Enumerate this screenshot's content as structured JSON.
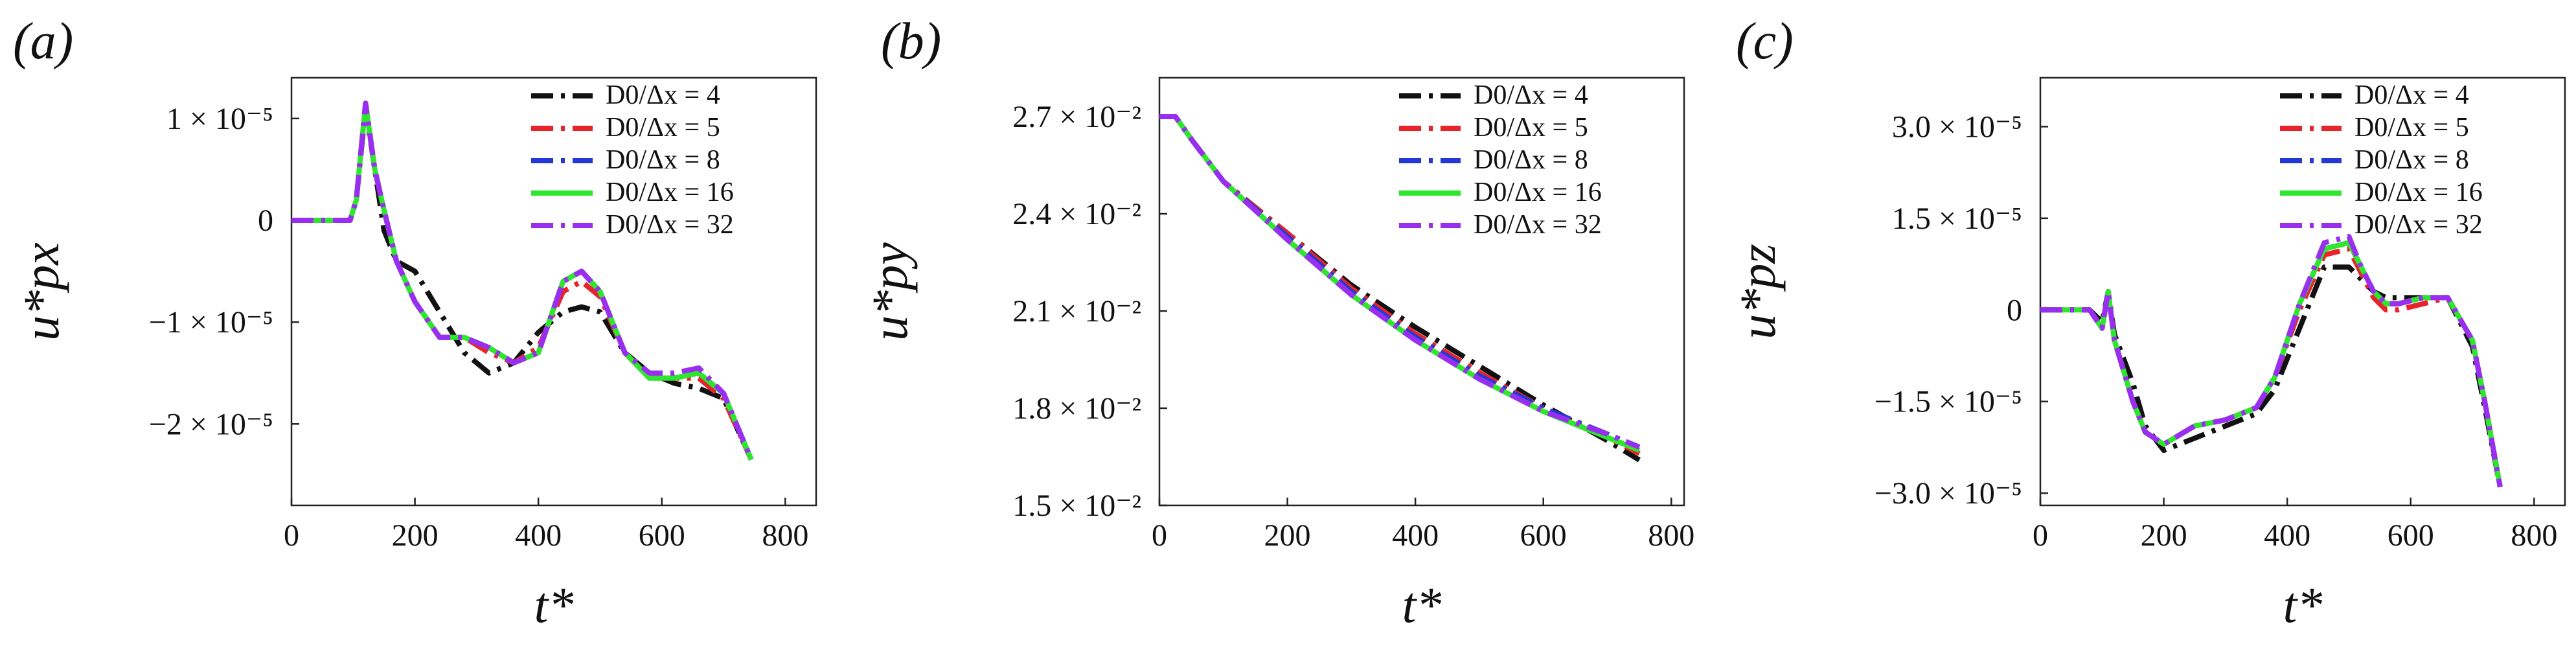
{
  "figure": {
    "legend_entries": [
      "D0/Δx = 4",
      "D0/Δx = 5",
      "D0/Δx = 8",
      "D0/Δx = 16",
      "D0/Δx = 32"
    ]
  },
  "series_styles": [
    {
      "name": "D0/Δx = 4",
      "color": "#111111",
      "dash": "dashdot"
    },
    {
      "name": "D0/Δx = 5",
      "color": "#e8232a",
      "dash": "dashdot"
    },
    {
      "name": "D0/Δx = 8",
      "color": "#2438d6",
      "dash": "dashdot"
    },
    {
      "name": "D0/Δx = 16",
      "color": "#2ee62e",
      "dash": "solid"
    },
    {
      "name": "D0/Δx = 32",
      "color": "#9a2ef0",
      "dash": "dashdot"
    }
  ],
  "chart_data": [
    {
      "type": "line",
      "panel_label": "(a)",
      "xlabel": "t*",
      "ylabel": "u*px",
      "xlim": [
        0,
        850
      ],
      "ylim": [
        -2.8e-05,
        1.4e-05
      ],
      "x_ticks": [
        0,
        200,
        400,
        600,
        800
      ],
      "y_ticks": [
        1e-05,
        0,
        -1e-05,
        -2e-05
      ],
      "y_tick_labels": [
        "1 × 10⁻⁵",
        "0",
        "−1 × 10⁻⁵",
        "−2 × 10⁻⁵"
      ],
      "legend": "top-right",
      "series": [
        {
          "name": "D0/Δx = 4",
          "x": [
            0,
            95,
            105,
            120,
            135,
            150,
            170,
            200,
            240,
            280,
            320,
            360,
            400,
            440,
            470,
            500,
            540,
            580,
            620,
            660,
            700,
            745
          ],
          "y": [
            0,
            0,
            2e-06,
            1.1e-05,
            5e-06,
            -1e-06,
            -4e-06,
            -5e-06,
            -9e-06,
            -1.3e-05,
            -1.5e-05,
            -1.4e-05,
            -1.1e-05,
            -9e-06,
            -8.5e-06,
            -9e-06,
            -1.3e-05,
            -1.5e-05,
            -1.6e-05,
            -1.65e-05,
            -1.75e-05,
            -2.35e-05
          ]
        },
        {
          "name": "D0/Δx = 5",
          "x": [
            0,
            95,
            105,
            120,
            135,
            150,
            170,
            200,
            240,
            280,
            320,
            360,
            400,
            440,
            470,
            500,
            540,
            580,
            620,
            660,
            700,
            745
          ],
          "y": [
            0,
            0,
            2e-06,
            1.15e-05,
            5e-06,
            1e-06,
            -4e-06,
            -8e-06,
            -1.15e-05,
            -1.15e-05,
            -1.3e-05,
            -1.4e-05,
            -1.25e-05,
            -7e-06,
            -6e-06,
            -7.5e-06,
            -1.3e-05,
            -1.55e-05,
            -1.55e-05,
            -1.55e-05,
            -1.75e-05,
            -2.35e-05
          ]
        },
        {
          "name": "D0/Δx = 8",
          "x": [
            0,
            95,
            105,
            120,
            135,
            150,
            170,
            200,
            240,
            280,
            320,
            360,
            400,
            440,
            470,
            500,
            540,
            580,
            620,
            660,
            700,
            745
          ],
          "y": [
            0,
            0,
            2e-06,
            1.15e-05,
            5e-06,
            1e-06,
            -4e-06,
            -8e-06,
            -1.15e-05,
            -1.15e-05,
            -1.25e-05,
            -1.4e-05,
            -1.3e-05,
            -6e-06,
            -5e-06,
            -7e-06,
            -1.3e-05,
            -1.55e-05,
            -1.55e-05,
            -1.5e-05,
            -1.7e-05,
            -2.35e-05
          ]
        },
        {
          "name": "D0/Δx = 16",
          "x": [
            0,
            95,
            105,
            120,
            135,
            150,
            170,
            200,
            240,
            280,
            320,
            360,
            400,
            440,
            470,
            500,
            540,
            580,
            620,
            660,
            700,
            745
          ],
          "y": [
            0,
            0,
            2e-06,
            1.15e-05,
            5e-06,
            1e-06,
            -4e-06,
            -8e-06,
            -1.15e-05,
            -1.15e-05,
            -1.25e-05,
            -1.4e-05,
            -1.3e-05,
            -6e-06,
            -5e-06,
            -7e-06,
            -1.3e-05,
            -1.55e-05,
            -1.55e-05,
            -1.5e-05,
            -1.7e-05,
            -2.35e-05
          ]
        },
        {
          "name": "D0/Δx = 32",
          "x": [
            0,
            95,
            105,
            120,
            135,
            150,
            170,
            200,
            240,
            280,
            320,
            360,
            400,
            440,
            470,
            500,
            540,
            580,
            620,
            660,
            700,
            745
          ],
          "y": [
            0,
            0,
            2e-06,
            1.15e-05,
            5e-06,
            1e-06,
            -4e-06,
            -8e-06,
            -1.15e-05,
            -1.15e-05,
            -1.25e-05,
            -1.4e-05,
            -1.3e-05,
            -6e-06,
            -5e-06,
            -7e-06,
            -1.3e-05,
            -1.5e-05,
            -1.5e-05,
            -1.45e-05,
            -1.7e-05,
            -2.35e-05
          ]
        }
      ]
    },
    {
      "type": "line",
      "panel_label": "(b)",
      "xlabel": "t*",
      "ylabel": "u*py",
      "xlim": [
        0,
        820
      ],
      "ylim": [
        0.015,
        0.0282
      ],
      "x_ticks": [
        0,
        200,
        400,
        600,
        800
      ],
      "y_ticks": [
        0.027,
        0.024,
        0.021,
        0.018,
        0.015
      ],
      "y_tick_labels": [
        "2.7 × 10⁻²",
        "2.4 × 10⁻²",
        "2.1 × 10⁻²",
        "1.8 × 10⁻²",
        "1.5 × 10⁻²"
      ],
      "legend": "top-right",
      "series": [
        {
          "name": "D0/Δx = 4",
          "x": [
            0,
            25,
            50,
            100,
            200,
            300,
            400,
            500,
            600,
            700,
            750
          ],
          "y": [
            0.027,
            0.027,
            0.0263,
            0.025,
            0.0234,
            0.0218,
            0.0205,
            0.0193,
            0.0181,
            0.017,
            0.0164
          ]
        },
        {
          "name": "D0/Δx = 5",
          "x": [
            0,
            25,
            50,
            100,
            200,
            300,
            400,
            500,
            600,
            700,
            750
          ],
          "y": [
            0.027,
            0.027,
            0.0263,
            0.025,
            0.0234,
            0.0217,
            0.0203,
            0.0191,
            0.018,
            0.0171,
            0.0166
          ]
        },
        {
          "name": "D0/Δx = 8",
          "x": [
            0,
            25,
            50,
            100,
            200,
            300,
            400,
            500,
            600,
            700,
            750
          ],
          "y": [
            0.027,
            0.027,
            0.0263,
            0.025,
            0.0233,
            0.0216,
            0.0202,
            0.019,
            0.018,
            0.0172,
            0.0168
          ]
        },
        {
          "name": "D0/Δx = 16",
          "x": [
            0,
            25,
            50,
            100,
            200,
            300,
            400,
            500,
            600,
            700,
            750
          ],
          "y": [
            0.027,
            0.027,
            0.0263,
            0.025,
            0.0232,
            0.0215,
            0.0201,
            0.0189,
            0.0179,
            0.0171,
            0.0167
          ]
        },
        {
          "name": "D0/Δx = 32",
          "x": [
            0,
            25,
            50,
            100,
            200,
            300,
            400,
            500,
            600,
            700,
            750
          ],
          "y": [
            0.027,
            0.027,
            0.0263,
            0.025,
            0.0232,
            0.0215,
            0.0201,
            0.0189,
            0.0179,
            0.0172,
            0.0168
          ]
        }
      ]
    },
    {
      "type": "line",
      "panel_label": "(c)",
      "xlabel": "t*",
      "ylabel": "u*pz",
      "xlim": [
        0,
        850
      ],
      "ylim": [
        -3.2e-05,
        3.8e-05
      ],
      "x_ticks": [
        0,
        200,
        400,
        600,
        800
      ],
      "y_ticks": [
        3e-05,
        1.5e-05,
        0,
        -1.5e-05,
        -3e-05
      ],
      "y_tick_labels": [
        "3.0 × 10⁻⁵",
        "1.5 × 10⁻⁵",
        "0",
        "−1.5 × 10⁻⁵",
        "−3.0 × 10⁻⁵"
      ],
      "legend": "top-right",
      "series": [
        {
          "name": "D0/Δx = 4",
          "x": [
            0,
            80,
            100,
            110,
            120,
            150,
            170,
            200,
            250,
            300,
            350,
            380,
            420,
            460,
            500,
            520,
            540,
            560,
            580,
            620,
            660,
            700,
            720,
            745
          ],
          "y": [
            0,
            0,
            -2e-06,
            3e-06,
            -4e-06,
            -1.2e-05,
            -1.9e-05,
            -2.3e-05,
            -2.1e-05,
            -1.9e-05,
            -1.7e-05,
            -1.3e-05,
            -3e-06,
            7e-06,
            7e-06,
            5e-06,
            3e-06,
            2e-06,
            2e-06,
            2e-06,
            2e-06,
            -6e-06,
            -1.6e-05,
            -2.9e-05
          ]
        },
        {
          "name": "D0/Δx = 5",
          "x": [
            0,
            80,
            100,
            110,
            120,
            150,
            170,
            200,
            250,
            300,
            350,
            380,
            420,
            460,
            500,
            520,
            540,
            560,
            580,
            620,
            660,
            700,
            720,
            745
          ],
          "y": [
            0,
            0,
            -3e-06,
            3e-06,
            -5e-06,
            -1.5e-05,
            -2e-05,
            -2.2e-05,
            -1.9e-05,
            -1.8e-05,
            -1.6e-05,
            -1.1e-05,
            0,
            9e-06,
            1e-05,
            6e-06,
            2e-06,
            0,
            0,
            1e-06,
            2e-06,
            -5e-06,
            -1.5e-05,
            -2.9e-05
          ]
        },
        {
          "name": "D0/Δx = 8",
          "x": [
            0,
            80,
            100,
            110,
            120,
            150,
            170,
            200,
            250,
            300,
            350,
            380,
            420,
            460,
            500,
            520,
            540,
            560,
            580,
            620,
            660,
            700,
            720,
            745
          ],
          "y": [
            0,
            0,
            -3e-06,
            3e-06,
            -5e-06,
            -1.5e-05,
            -2e-05,
            -2.2e-05,
            -1.9e-05,
            -1.8e-05,
            -1.6e-05,
            -1.1e-05,
            1e-06,
            1e-05,
            1.1e-05,
            7e-06,
            3e-06,
            1e-06,
            1e-06,
            2e-06,
            2e-06,
            -5e-06,
            -1.5e-05,
            -2.9e-05
          ]
        },
        {
          "name": "D0/Δx = 16",
          "x": [
            0,
            80,
            100,
            110,
            120,
            150,
            170,
            200,
            250,
            300,
            350,
            380,
            420,
            460,
            500,
            520,
            540,
            560,
            580,
            620,
            660,
            700,
            720,
            745
          ],
          "y": [
            0,
            0,
            -3e-06,
            3e-06,
            -5e-06,
            -1.5e-05,
            -2e-05,
            -2.2e-05,
            -1.9e-05,
            -1.8e-05,
            -1.6e-05,
            -1.1e-05,
            1e-06,
            1e-05,
            1.1e-05,
            7e-06,
            3e-06,
            1e-06,
            1e-06,
            2e-06,
            2e-06,
            -5e-06,
            -1.5e-05,
            -2.9e-05
          ]
        },
        {
          "name": "D0/Δx = 32",
          "x": [
            0,
            80,
            100,
            110,
            120,
            150,
            170,
            200,
            250,
            300,
            350,
            380,
            420,
            460,
            500,
            520,
            540,
            560,
            580,
            620,
            660,
            700,
            720,
            745
          ],
          "y": [
            0,
            0,
            -3e-06,
            3e-06,
            -5e-06,
            -1.5e-05,
            -2e-05,
            -2.2e-05,
            -1.9e-05,
            -1.8e-05,
            -1.6e-05,
            -1.1e-05,
            1e-06,
            1.1e-05,
            1.2e-05,
            7e-06,
            3e-06,
            1e-06,
            1e-06,
            2e-06,
            2e-06,
            -5e-06,
            -1.5e-05,
            -2.9e-05
          ]
        }
      ]
    }
  ]
}
